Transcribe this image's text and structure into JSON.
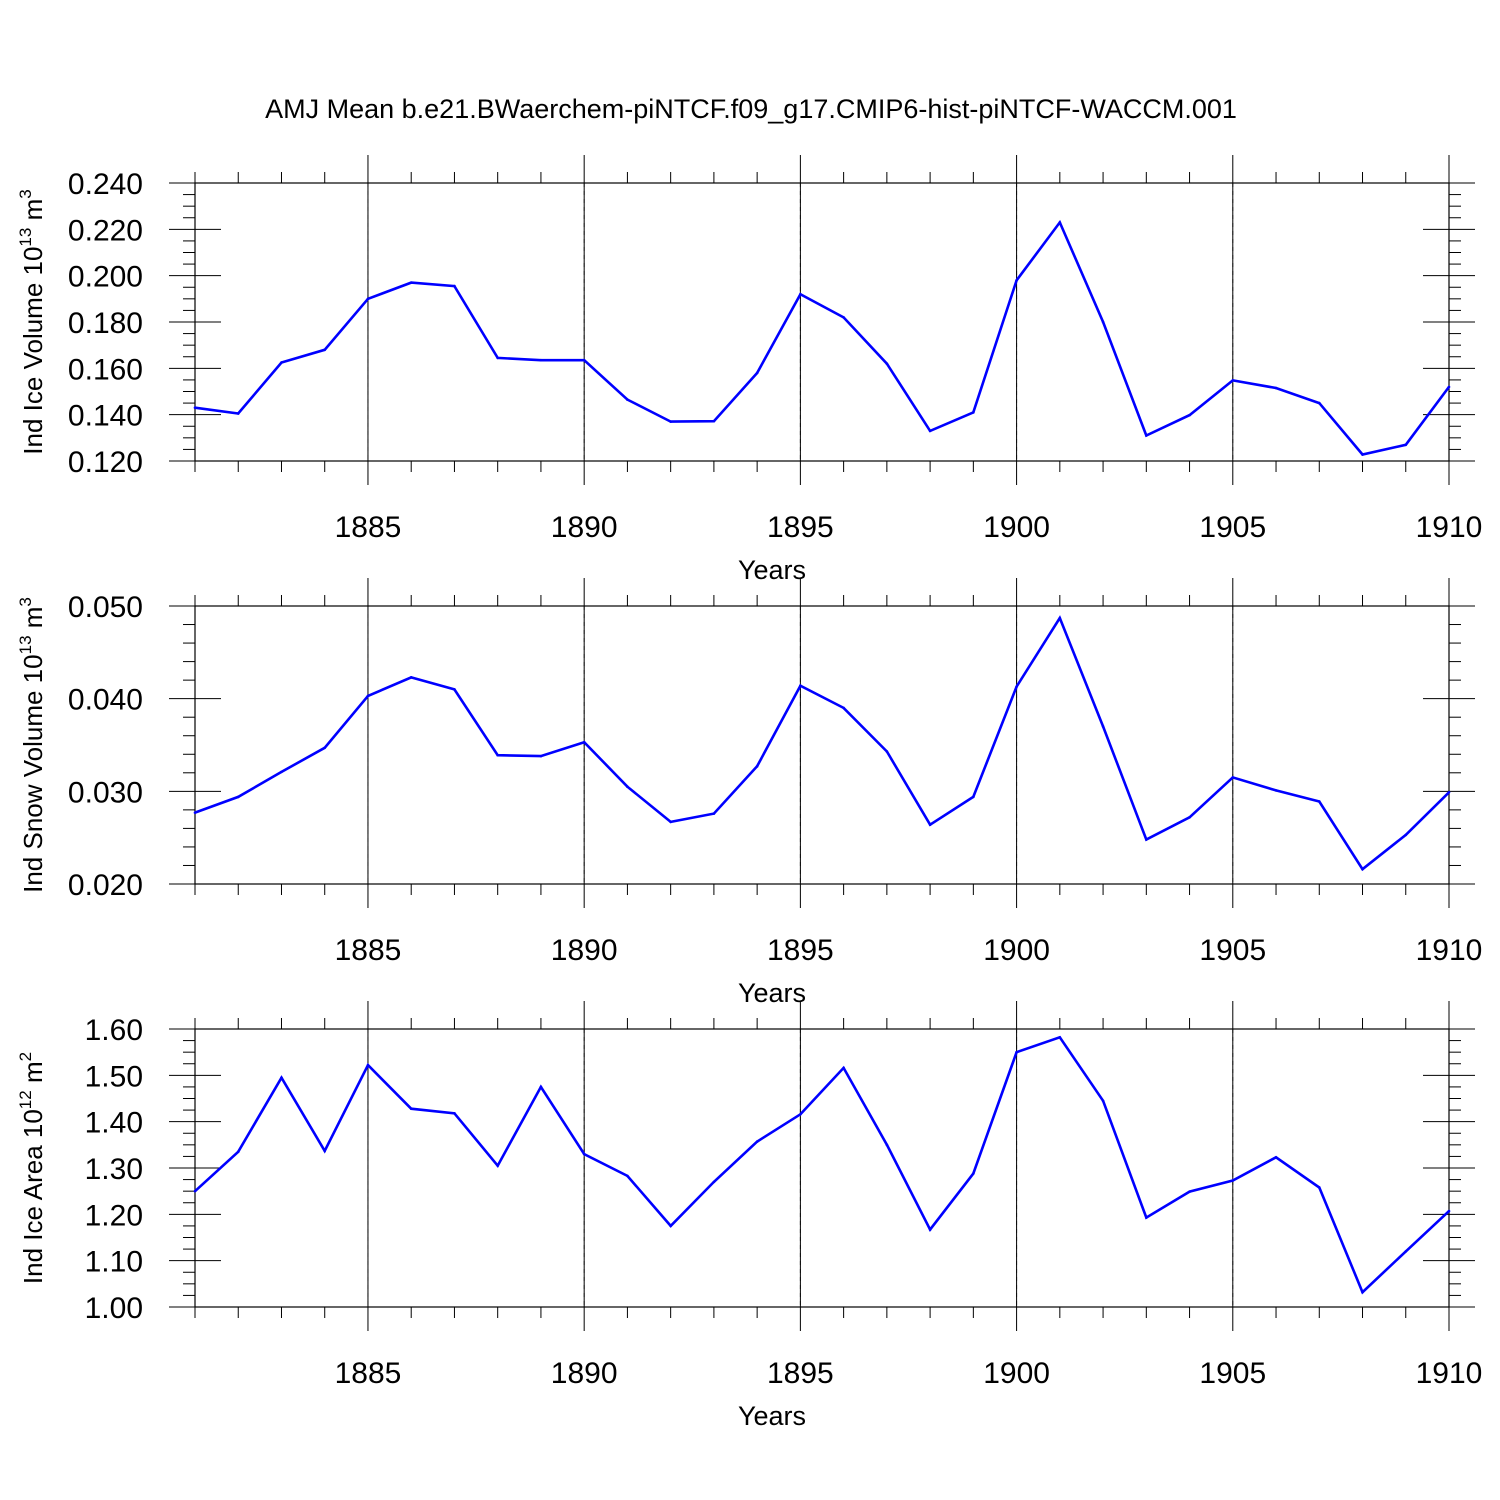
{
  "title": "AMJ Mean b.e21.BWaerchem-piNTCF.f09_g17.CMIP6-hist-piNTCF-WACCM.001",
  "line_color": "#0000ff",
  "chart_data": [
    {
      "type": "line",
      "ylabel": "Ind Ice Volume 10",
      "ylabel_exp": "13",
      "ylabel_unit": " m",
      "ylabel_unit_exp": "3",
      "xlabel": "Years",
      "xlim": [
        1881,
        1910
      ],
      "ylim": [
        0.12,
        0.24
      ],
      "yticks": [
        0.12,
        0.14,
        0.16,
        0.18,
        0.2,
        0.22,
        0.24
      ],
      "ytick_labels": [
        "0.120",
        "0.140",
        "0.160",
        "0.180",
        "0.200",
        "0.220",
        "0.240"
      ],
      "yminor_step": 0.005,
      "xticks": [
        1885,
        1890,
        1895,
        1900,
        1905,
        1910
      ],
      "xtick_labels": [
        "1885",
        "1890",
        "1895",
        "1900",
        "1905",
        "1910"
      ],
      "x": [
        1881,
        1882,
        1883,
        1884,
        1885,
        1886,
        1887,
        1888,
        1889,
        1890,
        1891,
        1892,
        1893,
        1894,
        1895,
        1896,
        1897,
        1898,
        1899,
        1900,
        1901,
        1902,
        1903,
        1904,
        1905,
        1906,
        1907,
        1908,
        1909,
        1910
      ],
      "values": [
        0.143,
        0.1405,
        0.1625,
        0.168,
        0.19,
        0.197,
        0.1955,
        0.1645,
        0.1635,
        0.1635,
        0.1465,
        0.137,
        0.1372,
        0.158,
        0.192,
        0.182,
        0.162,
        0.133,
        0.141,
        0.198,
        0.223,
        0.18,
        0.131,
        0.1398,
        0.1548,
        0.1515,
        0.145,
        0.1228,
        0.127,
        0.152
      ]
    },
    {
      "type": "line",
      "ylabel": "Ind Snow Volume 10",
      "ylabel_exp": "13",
      "ylabel_unit": " m",
      "ylabel_unit_exp": "3",
      "xlabel": "Years",
      "xlim": [
        1881,
        1910
      ],
      "ylim": [
        0.02,
        0.05
      ],
      "yticks": [
        0.02,
        0.03,
        0.04,
        0.05
      ],
      "ytick_labels": [
        "0.020",
        "0.030",
        "0.040",
        "0.050"
      ],
      "yminor_step": 0.002,
      "xticks": [
        1885,
        1890,
        1895,
        1900,
        1905,
        1910
      ],
      "xtick_labels": [
        "1885",
        "1890",
        "1895",
        "1900",
        "1905",
        "1910"
      ],
      "x": [
        1881,
        1882,
        1883,
        1884,
        1885,
        1886,
        1887,
        1888,
        1889,
        1890,
        1891,
        1892,
        1893,
        1894,
        1895,
        1896,
        1897,
        1898,
        1899,
        1900,
        1901,
        1902,
        1903,
        1904,
        1905,
        1906,
        1907,
        1908,
        1909,
        1910
      ],
      "values": [
        0.0277,
        0.0294,
        0.0321,
        0.0347,
        0.0403,
        0.0423,
        0.041,
        0.0339,
        0.0338,
        0.0353,
        0.0305,
        0.0267,
        0.0276,
        0.0327,
        0.0414,
        0.039,
        0.0343,
        0.0264,
        0.0294,
        0.0413,
        0.0487,
        0.037,
        0.0248,
        0.0272,
        0.0315,
        0.0301,
        0.0289,
        0.0216,
        0.0253,
        0.0299
      ]
    },
    {
      "type": "line",
      "ylabel": "Ind Ice Area 10",
      "ylabel_exp": "12",
      "ylabel_unit": " m",
      "ylabel_unit_exp": "2",
      "xlabel": "Years",
      "xlim": [
        1881,
        1910
      ],
      "ylim": [
        1.0,
        1.6
      ],
      "yticks": [
        1.0,
        1.1,
        1.2,
        1.3,
        1.4,
        1.5,
        1.6
      ],
      "ytick_labels": [
        "1.00",
        "1.10",
        "1.20",
        "1.30",
        "1.40",
        "1.50",
        "1.60"
      ],
      "yminor_step": 0.025,
      "xticks": [
        1885,
        1890,
        1895,
        1900,
        1905,
        1910
      ],
      "xtick_labels": [
        "1885",
        "1890",
        "1895",
        "1900",
        "1905",
        "1910"
      ],
      "x": [
        1881,
        1882,
        1883,
        1884,
        1885,
        1886,
        1887,
        1888,
        1889,
        1890,
        1891,
        1892,
        1893,
        1894,
        1895,
        1896,
        1897,
        1898,
        1899,
        1900,
        1901,
        1902,
        1903,
        1904,
        1905,
        1906,
        1907,
        1908,
        1909,
        1910
      ],
      "values": [
        1.25,
        1.335,
        1.495,
        1.337,
        1.522,
        1.428,
        1.418,
        1.305,
        1.475,
        1.33,
        1.283,
        1.175,
        1.27,
        1.357,
        1.416,
        1.516,
        1.35,
        1.167,
        1.288,
        1.55,
        1.582,
        1.445,
        1.193,
        1.249,
        1.273,
        1.323,
        1.258,
        1.032,
        1.12,
        1.207
      ]
    }
  ]
}
